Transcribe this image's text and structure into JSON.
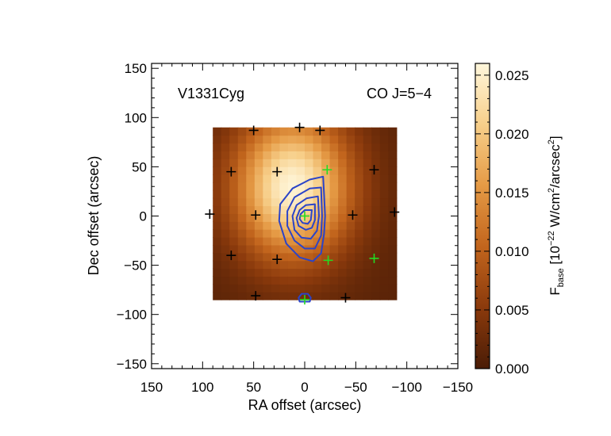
{
  "chart_data": {
    "type": "heatmap",
    "source_label": "V1331Cyg",
    "line_label": "CO J=5−4",
    "xlabel": "RA offset (arcsec)",
    "ylabel": "Dec offset (arcsec)",
    "xlim": [
      150,
      -150
    ],
    "ylim": [
      -155,
      155
    ],
    "x_ticks": [
      150,
      100,
      50,
      0,
      -50,
      -100,
      -150
    ],
    "y_ticks": [
      150,
      100,
      50,
      0,
      -50,
      -100,
      -150
    ],
    "x_tick_labels": [
      "150",
      "100",
      "50",
      "0",
      "−50",
      "−100",
      "−150"
    ],
    "y_tick_labels": [
      "150",
      "100",
      "50",
      "0",
      "−50",
      "−100",
      "−150"
    ],
    "map_extent": {
      "x": [
        90,
        -90
      ],
      "y": [
        -85,
        90
      ]
    },
    "map_peak": {
      "x": 12,
      "y": 30,
      "value": 0.026
    },
    "colorbar": {
      "label_main": "F",
      "label_sub": "base",
      "label_units_pre": " [10",
      "label_units_exp": "−22",
      "label_units_mid": " W/cm",
      "label_units_exp2": "2",
      "label_units_mid2": "/arcsec",
      "label_units_exp3": "2",
      "label_units_end": "]",
      "range": [
        0.0,
        0.026
      ],
      "ticks": [
        0.0,
        0.005,
        0.01,
        0.015,
        0.02,
        0.025
      ],
      "tick_labels": [
        "0.000",
        "0.005",
        "0.010",
        "0.015",
        "0.020",
        "0.025"
      ],
      "colors": [
        "#4a1c06",
        "#8b3a0c",
        "#c2651d",
        "#e59a45",
        "#f7cf8a",
        "#fff7dc"
      ]
    },
    "pixels_black": [
      [
        50,
        87
      ],
      [
        5,
        90
      ],
      [
        -15,
        87
      ],
      [
        72,
        45
      ],
      [
        27,
        45
      ],
      [
        -68,
        47
      ],
      [
        93,
        2
      ],
      [
        48,
        1
      ],
      [
        -47,
        1
      ],
      [
        -88,
        4
      ],
      [
        72,
        -40
      ],
      [
        27,
        -44
      ],
      [
        48,
        -81
      ],
      [
        -40,
        -83
      ]
    ],
    "pixels_green": [
      [
        0,
        0
      ],
      [
        -22,
        47
      ],
      [
        -23,
        -45
      ],
      [
        -68,
        -43
      ],
      [
        0,
        -85
      ]
    ],
    "contours": [
      [
        [
          -18,
          40
        ],
        [
          -5,
          37
        ],
        [
          12,
          28
        ],
        [
          24,
          12
        ],
        [
          25,
          -5
        ],
        [
          18,
          -28
        ],
        [
          5,
          -42
        ],
        [
          -8,
          -46
        ],
        [
          -16,
          -38
        ],
        [
          -19,
          -18
        ],
        [
          -20,
          0
        ],
        [
          -19,
          22
        ],
        [
          -18,
          40
        ]
      ],
      [
        [
          -16,
          29
        ],
        [
          -5,
          28
        ],
        [
          10,
          19
        ],
        [
          17,
          5
        ],
        [
          17,
          -10
        ],
        [
          10,
          -25
        ],
        [
          0,
          -33
        ],
        [
          -10,
          -33
        ],
        [
          -16,
          -20
        ],
        [
          -17,
          0
        ],
        [
          -16,
          29
        ]
      ],
      [
        [
          -13,
          20
        ],
        [
          -2,
          18
        ],
        [
          8,
          11
        ],
        [
          12,
          0
        ],
        [
          10,
          -14
        ],
        [
          3,
          -22
        ],
        [
          -6,
          -23
        ],
        [
          -12,
          -15
        ],
        [
          -14,
          0
        ],
        [
          -13,
          20
        ]
      ],
      [
        [
          -10,
          12
        ],
        [
          -1,
          11
        ],
        [
          5,
          6
        ],
        [
          8,
          -2
        ],
        [
          6,
          -10
        ],
        [
          -1,
          -14
        ],
        [
          -7,
          -12
        ],
        [
          -10,
          -4
        ],
        [
          -10,
          12
        ]
      ],
      [
        [
          -7,
          6
        ],
        [
          0,
          6
        ],
        [
          4,
          2
        ],
        [
          5,
          -3
        ],
        [
          2,
          -7
        ],
        [
          -3,
          -8
        ],
        [
          -6,
          -4
        ],
        [
          -7,
          6
        ]
      ],
      [
        [
          6,
          -83
        ],
        [
          3,
          -79
        ],
        [
          -3,
          -79
        ],
        [
          -6,
          -83
        ],
        [
          -5,
          -87
        ],
        [
          5,
          -87
        ],
        [
          6,
          -83
        ]
      ]
    ],
    "grid": false,
    "legend": "none"
  }
}
